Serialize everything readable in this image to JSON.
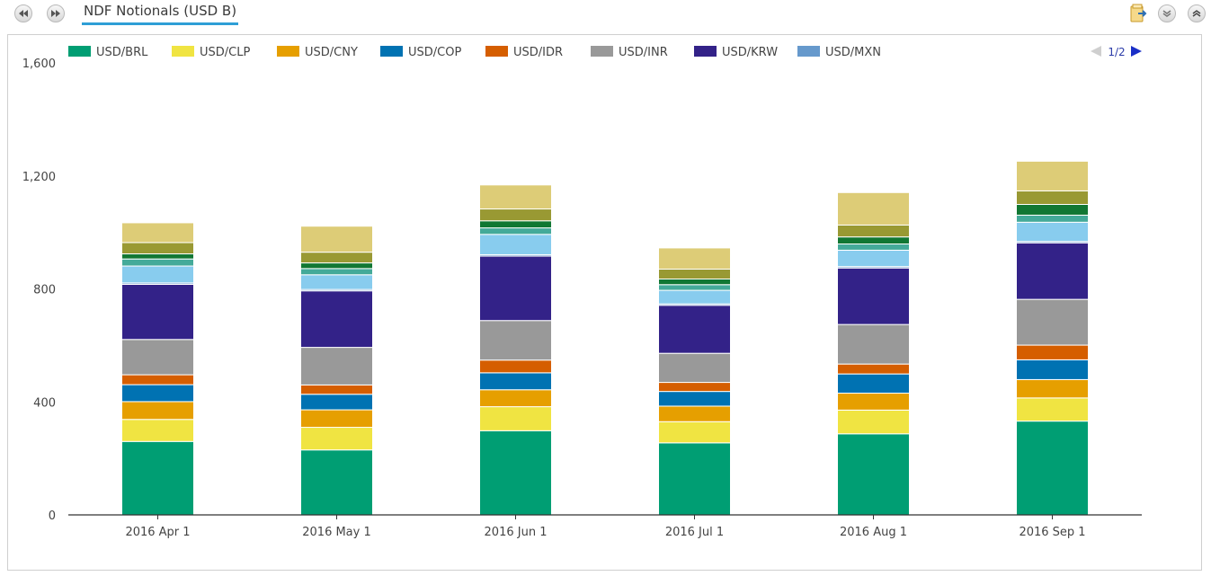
{
  "header": {
    "title": "NDF Notionals (USD B)",
    "icons": [
      "rewind-icon",
      "fast-forward-icon",
      "export-folder-icon",
      "collapse-down-icon",
      "expand-up-icon"
    ]
  },
  "legend": {
    "page_indicator": "1/2",
    "placement": "top"
  },
  "chart_data": {
    "type": "bar",
    "stacked": true,
    "title": "NDF Notionals (USD B)",
    "xlabel": "",
    "ylabel": "",
    "ylim": [
      0,
      1600
    ],
    "yticks": [
      0,
      400,
      800,
      1200,
      1600
    ],
    "ytick_labels": [
      "0",
      "400",
      "800",
      "1,200",
      "1,600"
    ],
    "grid": false,
    "categories": [
      "2016 Apr 1",
      "2016 May 1",
      "2016 Jun 1",
      "2016 Jul 1",
      "2016 Aug 1",
      "2016 Sep 1"
    ],
    "series": [
      {
        "name": "USD/BRL",
        "color": "#009e73",
        "values": [
          260,
          230,
          298,
          255,
          287,
          332
        ]
      },
      {
        "name": "USD/CLP",
        "color": "#f0e442",
        "values": [
          78,
          80,
          85,
          75,
          84,
          82
        ]
      },
      {
        "name": "USD/CNY",
        "color": "#e69f00",
        "values": [
          63,
          62,
          60,
          55,
          60,
          65
        ]
      },
      {
        "name": "USD/COP",
        "color": "#0072b2",
        "values": [
          60,
          55,
          60,
          52,
          68,
          70
        ]
      },
      {
        "name": "USD/IDR",
        "color": "#d55e00",
        "values": [
          35,
          33,
          45,
          32,
          35,
          52
        ]
      },
      {
        "name": "USD/INR",
        "color": "#999999",
        "values": [
          125,
          133,
          140,
          103,
          140,
          162
        ]
      },
      {
        "name": "USD/KRW",
        "color": "#332288",
        "values": [
          195,
          200,
          228,
          170,
          200,
          200
        ]
      },
      {
        "name": "USD/MXN",
        "color": "#6699cc",
        "values": [
          5,
          5,
          5,
          5,
          5,
          5
        ]
      },
      {
        "name": "",
        "color": "#88ccee",
        "values": [
          60,
          52,
          72,
          48,
          58,
          68
        ]
      },
      {
        "name": "",
        "color": "#44aa99",
        "values": [
          25,
          22,
          23,
          20,
          22,
          25
        ]
      },
      {
        "name": "",
        "color": "#117733",
        "values": [
          18,
          20,
          25,
          20,
          25,
          38
        ]
      },
      {
        "name": "",
        "color": "#999933",
        "values": [
          40,
          38,
          42,
          35,
          42,
          48
        ]
      },
      {
        "name": "",
        "color": "#ddcc77",
        "values": [
          70,
          92,
          85,
          75,
          115,
          105
        ]
      }
    ]
  }
}
